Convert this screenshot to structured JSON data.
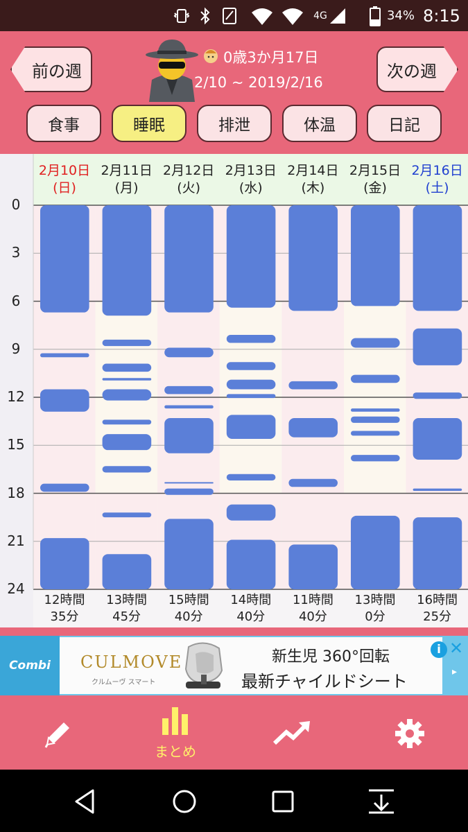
{
  "status_bar": {
    "battery": "34%",
    "time": "8:15",
    "network": "4G"
  },
  "header": {
    "prev_week": "前の週",
    "next_week": "次の週",
    "age": "0歳3か月17日",
    "date_range": "2/10 ~ 2019/2/16",
    "tabs": [
      {
        "label": "食事",
        "active": false
      },
      {
        "label": "睡眠",
        "active": true
      },
      {
        "label": "排泄",
        "active": false
      },
      {
        "label": "体温",
        "active": false
      },
      {
        "label": "日記",
        "active": false
      }
    ]
  },
  "chart_data": {
    "type": "bar",
    "y_ticks": [
      "0",
      "3",
      "6",
      "9",
      "12",
      "15",
      "18",
      "21",
      "24"
    ],
    "ylim": [
      0,
      24
    ],
    "days": [
      {
        "date": "2月10日",
        "weekday": "(日)",
        "color": "#e02020",
        "total_h": "12時間",
        "total_m": "35分",
        "segments": [
          [
            0,
            6.7
          ],
          [
            9.25,
            9.5
          ],
          [
            11.5,
            12.9
          ],
          [
            17.4,
            17.9
          ],
          [
            20.8,
            24
          ]
        ]
      },
      {
        "date": "2月11日",
        "weekday": "(月)",
        "color": "#222222",
        "total_h": "13時間",
        "total_m": "45分",
        "segments": [
          [
            0,
            6.9
          ],
          [
            8.4,
            8.8
          ],
          [
            9.9,
            10.4
          ],
          [
            10.8,
            10.95
          ],
          [
            11.5,
            12.2
          ],
          [
            13.4,
            13.7
          ],
          [
            14.3,
            15.3
          ],
          [
            16.3,
            16.7
          ],
          [
            19.2,
            19.5
          ],
          [
            21.8,
            24
          ]
        ]
      },
      {
        "date": "2月12日",
        "weekday": "(火)",
        "color": "#222222",
        "total_h": "15時間",
        "total_m": "40分",
        "segments": [
          [
            0,
            6.7
          ],
          [
            8.9,
            9.5
          ],
          [
            11.3,
            11.8
          ],
          [
            12.5,
            12.7
          ],
          [
            13.3,
            15.5
          ],
          [
            17.3,
            17.35
          ],
          [
            17.7,
            18.1
          ],
          [
            19.6,
            24
          ]
        ]
      },
      {
        "date": "2月13日",
        "weekday": "(水)",
        "color": "#222222",
        "total_h": "14時間",
        "total_m": "40分",
        "segments": [
          [
            0,
            6.4
          ],
          [
            8.1,
            8.6
          ],
          [
            9.8,
            10.3
          ],
          [
            10.9,
            11.5
          ],
          [
            11.8,
            12.05
          ],
          [
            13.1,
            14.6
          ],
          [
            16.8,
            17.2
          ],
          [
            18.7,
            19.7
          ],
          [
            20.9,
            24
          ]
        ]
      },
      {
        "date": "2月14日",
        "weekday": "(木)",
        "color": "#222222",
        "total_h": "11時間",
        "total_m": "40分",
        "segments": [
          [
            0,
            6.6
          ],
          [
            11.0,
            11.5
          ],
          [
            13.3,
            14.5
          ],
          [
            17.1,
            17.6
          ],
          [
            21.2,
            24
          ]
        ]
      },
      {
        "date": "2月15日",
        "weekday": "(金)",
        "color": "#222222",
        "total_h": "13時間",
        "total_m": "0分",
        "segments": [
          [
            0,
            6.3
          ],
          [
            8.3,
            8.9
          ],
          [
            10.6,
            11.1
          ],
          [
            12.7,
            12.9
          ],
          [
            13.2,
            13.6
          ],
          [
            14.1,
            14.4
          ],
          [
            15.6,
            16.0
          ],
          [
            19.4,
            24
          ]
        ]
      },
      {
        "date": "2月16日",
        "weekday": "(土)",
        "color": "#1f3fd0",
        "total_h": "16時間",
        "total_m": "25分",
        "segments": [
          [
            0,
            6.6
          ],
          [
            7.7,
            10.0
          ],
          [
            11.7,
            12.1
          ],
          [
            13.3,
            15.9
          ],
          [
            17.7,
            17.85
          ],
          [
            19.5,
            24
          ]
        ]
      }
    ],
    "bar_color": "#5b7fd8"
  },
  "ad": {
    "logo": "Combi",
    "brand": "CULMOVE",
    "brand_sub": "クルムーヴ スマート",
    "line1": "新生児 360°回転",
    "line2": "最新チャイルドシート",
    "info": "i",
    "close": "✕",
    "arrow": "▸"
  },
  "bottom_nav": {
    "items": [
      {
        "icon": "pencil-icon",
        "label": ""
      },
      {
        "icon": "bar-chart-icon",
        "label": "まとめ"
      },
      {
        "icon": "trend-arrow-icon",
        "label": ""
      },
      {
        "icon": "gear-icon",
        "label": ""
      }
    ]
  }
}
